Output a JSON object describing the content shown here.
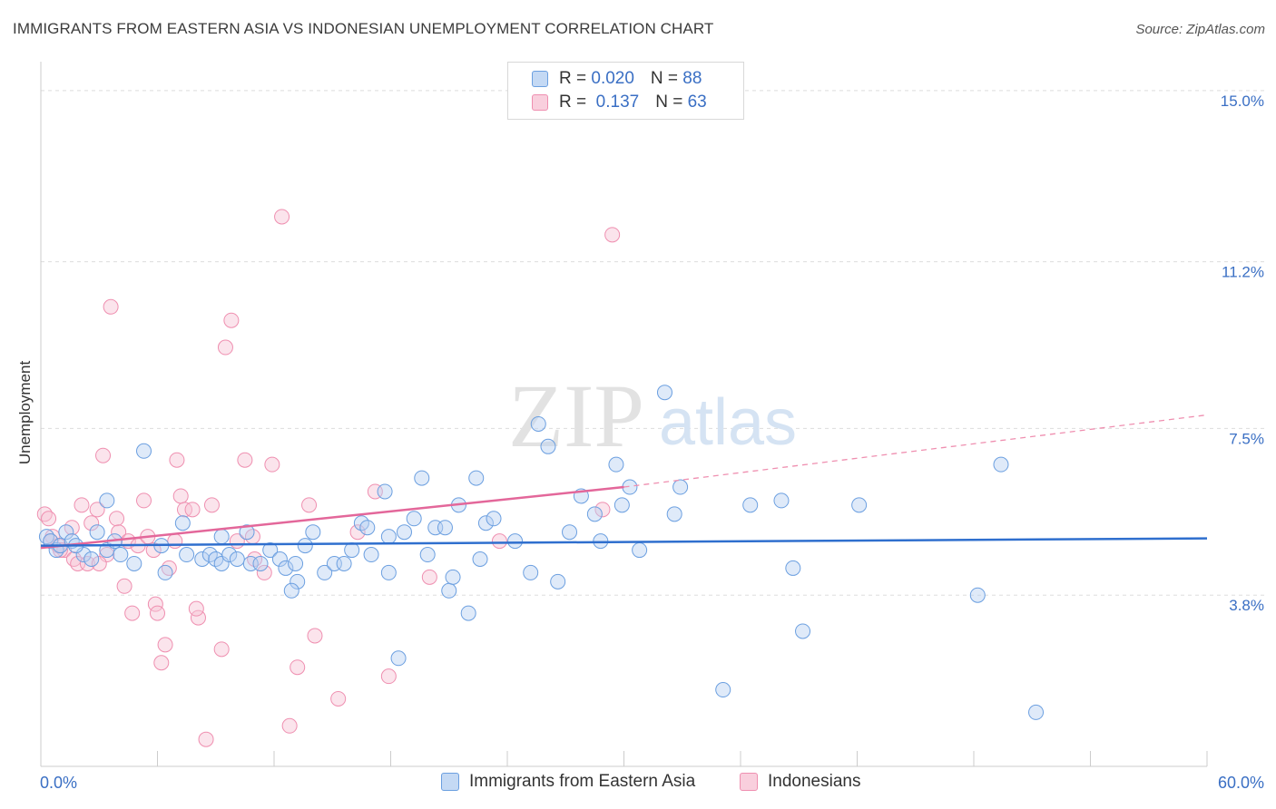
{
  "header": {
    "title": "IMMIGRANTS FROM EASTERN ASIA VS INDONESIAN UNEMPLOYMENT CORRELATION CHART",
    "source": "Source: ZipAtlas.com"
  },
  "watermark": {
    "zip": "ZIP",
    "atlas": "atlas"
  },
  "legend": {
    "rows": [
      {
        "r_label": "R = ",
        "r_value": "0.020",
        "n_label": "N = ",
        "n_value": "88",
        "color": "#6b9fe0"
      },
      {
        "r_label": "R = ",
        "r_value": " 0.137",
        "n_label": "N = ",
        "n_value": "63",
        "color": "#ef8fb0"
      }
    ]
  },
  "bottom_legend": {
    "series1": "Immigrants from Eastern Asia",
    "series2": "Indonesians"
  },
  "chart_data": {
    "type": "scatter",
    "title": "IMMIGRANTS FROM EASTERN ASIA VS INDONESIAN UNEMPLOYMENT CORRELATION CHART",
    "xlabel": "",
    "ylabel": "Unemployment",
    "xlim": [
      0,
      60
    ],
    "ylim": [
      0,
      15.4
    ],
    "x_tick_labels": [
      "0.0%",
      "60.0%"
    ],
    "y_ticks": [
      3.8,
      7.5,
      11.2,
      15.0
    ],
    "y_tick_labels": [
      "3.8%",
      "7.5%",
      "11.2%",
      "15.0%"
    ],
    "grid": true,
    "legend_position": "top-center",
    "series": [
      {
        "name": "Immigrants from Eastern Asia",
        "color": "#6b9fe0",
        "trend": {
          "x": [
            0,
            60
          ],
          "y": [
            4.9,
            5.06
          ]
        },
        "points": [
          [
            0.3,
            5.1
          ],
          [
            0.5,
            5.0
          ],
          [
            0.8,
            4.8
          ],
          [
            1.0,
            4.9
          ],
          [
            1.3,
            5.2
          ],
          [
            1.6,
            5.0
          ],
          [
            2.2,
            4.7
          ],
          [
            2.6,
            4.6
          ],
          [
            3.4,
            4.8
          ],
          [
            3.8,
            5.0
          ],
          [
            3.4,
            5.9
          ],
          [
            4.1,
            4.7
          ],
          [
            4.8,
            4.5
          ],
          [
            5.3,
            7.0
          ],
          [
            6.2,
            4.9
          ],
          [
            6.4,
            4.3
          ],
          [
            7.3,
            5.4
          ],
          [
            7.5,
            4.7
          ],
          [
            8.3,
            4.6
          ],
          [
            8.7,
            4.7
          ],
          [
            9.0,
            4.6
          ],
          [
            9.3,
            4.5
          ],
          [
            9.7,
            4.7
          ],
          [
            10.1,
            4.6
          ],
          [
            10.6,
            5.2
          ],
          [
            10.8,
            4.5
          ],
          [
            11.3,
            4.5
          ],
          [
            11.8,
            4.8
          ],
          [
            12.3,
            4.6
          ],
          [
            12.6,
            4.4
          ],
          [
            13.1,
            4.5
          ],
          [
            13.2,
            4.1
          ],
          [
            13.6,
            4.9
          ],
          [
            14.0,
            5.2
          ],
          [
            14.6,
            4.3
          ],
          [
            15.1,
            4.5
          ],
          [
            15.6,
            4.5
          ],
          [
            16.0,
            4.8
          ],
          [
            16.5,
            5.4
          ],
          [
            16.8,
            5.3
          ],
          [
            17.0,
            4.7
          ],
          [
            17.7,
            6.1
          ],
          [
            17.9,
            5.1
          ],
          [
            17.9,
            4.3
          ],
          [
            18.7,
            5.2
          ],
          [
            19.2,
            5.5
          ],
          [
            19.6,
            6.4
          ],
          [
            19.9,
            4.7
          ],
          [
            20.3,
            5.3
          ],
          [
            20.8,
            5.3
          ],
          [
            21.0,
            3.9
          ],
          [
            21.2,
            4.2
          ],
          [
            21.5,
            5.8
          ],
          [
            22.0,
            3.4
          ],
          [
            22.4,
            6.4
          ],
          [
            22.6,
            4.6
          ],
          [
            22.9,
            5.4
          ],
          [
            23.3,
            5.5
          ],
          [
            24.4,
            5.0
          ],
          [
            25.2,
            4.3
          ],
          [
            25.6,
            7.6
          ],
          [
            26.1,
            7.1
          ],
          [
            26.6,
            4.1
          ],
          [
            27.2,
            5.2
          ],
          [
            27.8,
            6.0
          ],
          [
            28.5,
            5.6
          ],
          [
            28.8,
            5.0
          ],
          [
            29.6,
            6.7
          ],
          [
            29.9,
            5.8
          ],
          [
            30.3,
            6.2
          ],
          [
            30.8,
            4.8
          ],
          [
            32.1,
            8.3
          ],
          [
            32.6,
            5.6
          ],
          [
            32.9,
            6.2
          ],
          [
            36.5,
            5.8
          ],
          [
            38.1,
            5.9
          ],
          [
            38.7,
            4.4
          ],
          [
            39.2,
            3.0
          ],
          [
            42.1,
            5.8
          ],
          [
            48.2,
            3.8
          ],
          [
            49.4,
            6.7
          ],
          [
            51.2,
            1.2
          ],
          [
            35.1,
            1.7
          ],
          [
            18.4,
            2.4
          ],
          [
            12.9,
            3.9
          ],
          [
            9.3,
            5.1
          ],
          [
            2.9,
            5.2
          ],
          [
            1.8,
            4.9
          ]
        ]
      },
      {
        "name": "Indonesians",
        "color": "#ef8fb0",
        "trend": {
          "x": [
            0,
            30
          ],
          "y": [
            4.85,
            6.2
          ]
        },
        "dashed": {
          "x": [
            30,
            60
          ],
          "y": [
            6.2,
            7.8
          ]
        },
        "points": [
          [
            0.2,
            5.6
          ],
          [
            0.4,
            5.5
          ],
          [
            0.6,
            5.1
          ],
          [
            0.9,
            4.9
          ],
          [
            1.2,
            4.8
          ],
          [
            1.6,
            5.3
          ],
          [
            1.7,
            4.6
          ],
          [
            1.9,
            4.5
          ],
          [
            2.1,
            5.8
          ],
          [
            2.4,
            4.5
          ],
          [
            2.6,
            5.4
          ],
          [
            2.9,
            5.7
          ],
          [
            3.2,
            6.9
          ],
          [
            3.4,
            4.7
          ],
          [
            3.6,
            10.2
          ],
          [
            3.9,
            5.5
          ],
          [
            4.0,
            5.2
          ],
          [
            4.3,
            4.0
          ],
          [
            4.5,
            5.0
          ],
          [
            4.7,
            3.4
          ],
          [
            5.0,
            4.9
          ],
          [
            5.3,
            5.9
          ],
          [
            5.5,
            5.1
          ],
          [
            5.9,
            3.6
          ],
          [
            6.0,
            3.4
          ],
          [
            6.2,
            2.3
          ],
          [
            6.4,
            2.7
          ],
          [
            6.6,
            4.4
          ],
          [
            6.9,
            5.0
          ],
          [
            7.0,
            6.8
          ],
          [
            7.2,
            6.0
          ],
          [
            7.4,
            5.7
          ],
          [
            7.8,
            5.7
          ],
          [
            8.1,
            3.3
          ],
          [
            8.5,
            0.6
          ],
          [
            8.8,
            5.8
          ],
          [
            9.3,
            2.6
          ],
          [
            9.5,
            9.3
          ],
          [
            9.8,
            9.9
          ],
          [
            10.1,
            5.0
          ],
          [
            10.5,
            6.8
          ],
          [
            10.9,
            5.1
          ],
          [
            11.5,
            4.3
          ],
          [
            11.9,
            6.7
          ],
          [
            12.4,
            12.2
          ],
          [
            12.8,
            0.9
          ],
          [
            13.2,
            2.2
          ],
          [
            13.8,
            5.8
          ],
          [
            14.1,
            2.9
          ],
          [
            15.3,
            1.5
          ],
          [
            16.3,
            5.2
          ],
          [
            17.2,
            6.1
          ],
          [
            17.9,
            2.0
          ],
          [
            20.0,
            4.2
          ],
          [
            23.6,
            5.0
          ],
          [
            28.9,
            5.7
          ],
          [
            29.4,
            11.8
          ],
          [
            11.0,
            4.6
          ],
          [
            8.0,
            3.5
          ],
          [
            5.8,
            4.8
          ],
          [
            3.0,
            4.5
          ],
          [
            1.0,
            4.8
          ],
          [
            0.5,
            5.0
          ]
        ]
      }
    ]
  }
}
